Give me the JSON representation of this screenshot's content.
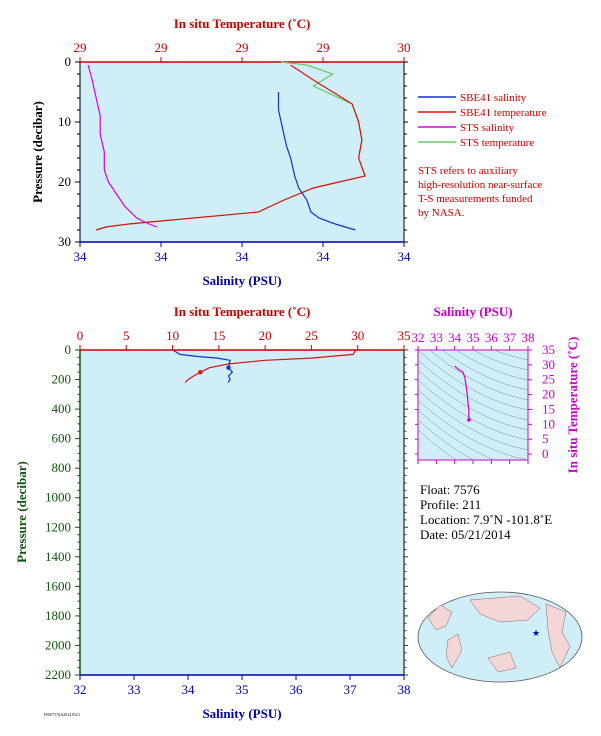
{
  "colors": {
    "plot_bg": "#cfeef8",
    "sbe_salinity": "#1133cc",
    "sbe_temperature": "#dd1111",
    "sts_salinity": "#dd00dd",
    "sts_temperature": "#66cc66",
    "axis_red": "#cc0000",
    "axis_blue": "#0000aa",
    "axis_green": "#115511",
    "axis_magenta": "#cc00cc"
  },
  "chart_data": [
    {
      "type": "line",
      "panel": "near-surface",
      "top_axis_title": "In situ Temperature (˚C)",
      "top_tick_labels": [
        "29",
        "29",
        "29",
        "29",
        "30"
      ],
      "bottom_axis_title": "Salinity (PSU)",
      "bottom_tick_labels": [
        "34",
        "34",
        "34",
        "34",
        "34"
      ],
      "left_axis_title": "Pressure (decibar)",
      "left_tick_labels": [
        "0",
        "10",
        "20",
        "30"
      ],
      "pressure_range": [
        0,
        30
      ],
      "temperature_range": [
        29,
        30
      ],
      "salinity_range": [
        34.0,
        34.8
      ],
      "legend_position": "right",
      "legend": [
        {
          "label": "SBE41 salinity",
          "color": "#1133cc"
        },
        {
          "label": "SBE41 temperature",
          "color": "#dd1111"
        },
        {
          "label": "STS salinity",
          "color": "#dd00dd"
        },
        {
          "label": "STS temperature",
          "color": "#66cc66"
        }
      ],
      "note": [
        "STS refers to auxiliary",
        "high-resolution near-surface",
        "T-S measurements funded",
        "by NASA."
      ],
      "series": [
        {
          "name": "SBE41 salinity",
          "axis": "salinity",
          "x": [
            34.49,
            34.49,
            34.5,
            34.51,
            34.52,
            34.53,
            34.54,
            34.56,
            34.57,
            34.59,
            34.63,
            34.68
          ],
          "y": [
            5,
            8,
            11,
            14,
            16,
            19,
            21,
            23,
            25,
            26,
            27,
            28
          ]
        },
        {
          "name": "SBE41 temperature",
          "axis": "temperature",
          "x": [
            29.65,
            29.72,
            29.84,
            29.86,
            29.87,
            29.86,
            29.88,
            29.72,
            29.63,
            29.55,
            29.15,
            29.08,
            29.05
          ],
          "y": [
            0.5,
            3,
            7,
            10,
            13,
            16,
            19,
            21,
            23,
            25,
            27,
            27.5,
            28
          ]
        },
        {
          "name": "STS salinity",
          "axis": "salinity",
          "x": [
            34.02,
            34.03,
            34.04,
            34.05,
            34.05,
            34.06,
            34.06,
            34.07,
            34.09,
            34.11,
            34.14,
            34.17,
            34.19
          ],
          "y": [
            0.5,
            3,
            6,
            9,
            12,
            15,
            18,
            20,
            22,
            24,
            26,
            27,
            27.5
          ]
        },
        {
          "name": "STS temperature",
          "axis": "temperature",
          "x": [
            29.62,
            29.7,
            29.78,
            29.72,
            29.84,
            29.86,
            29.87,
            29.86,
            29.88,
            29.72,
            29.63,
            29.55,
            29.15,
            29.08,
            29.05
          ],
          "y": [
            0,
            0.5,
            2,
            4,
            7,
            10,
            13,
            16,
            19,
            21,
            23,
            25,
            27,
            27.5,
            28
          ]
        }
      ]
    },
    {
      "type": "line",
      "panel": "full-profile",
      "top_axis_title": "In situ Temperature (˚C)",
      "top_tick_labels": [
        "0",
        "5",
        "10",
        "15",
        "20",
        "25",
        "30",
        "35"
      ],
      "bottom_axis_title": "Salinity (PSU)",
      "bottom_tick_labels": [
        "32",
        "33",
        "34",
        "35",
        "36",
        "37",
        "38"
      ],
      "left_axis_title": "Pressure (decibar)",
      "left_tick_labels": [
        "0",
        "200",
        "400",
        "600",
        "800",
        "1000",
        "1200",
        "1400",
        "1600",
        "1800",
        "2000",
        "2200"
      ],
      "pressure_range": [
        0,
        2200
      ],
      "temperature_range": [
        0,
        35
      ],
      "salinity_range": [
        32,
        38
      ],
      "series": [
        {
          "name": "SBE41 temperature",
          "axis": "temperature",
          "x": [
            29.8,
            29.5,
            25,
            20,
            16,
            14,
            13,
            12.3,
            11.8,
            11.5,
            11.4
          ],
          "y": [
            0,
            30,
            55,
            70,
            95,
            120,
            150,
            175,
            195,
            210,
            220
          ]
        },
        {
          "name": "SBE41 salinity",
          "axis": "salinity",
          "x": [
            33.72,
            33.85,
            34.2,
            34.55,
            34.78,
            34.75,
            34.82,
            34.75,
            34.78,
            34.74
          ],
          "y": [
            0,
            30,
            45,
            55,
            70,
            120,
            150,
            175,
            200,
            220
          ]
        }
      ]
    },
    {
      "type": "line",
      "panel": "t-s-diagram",
      "top_axis_title": "Salinity (PSU)",
      "top_tick_labels": [
        "32",
        "33",
        "34",
        "35",
        "36",
        "37",
        "38"
      ],
      "right_axis_title": "In situ Temperature (˚C)",
      "right_tick_labels": [
        "35",
        "30",
        "25",
        "20",
        "15",
        "10",
        "5",
        "0"
      ],
      "salinity_range": [
        32,
        38
      ],
      "temperature_range": [
        -2,
        35
      ],
      "series": [
        {
          "name": "T-S profile",
          "axis": "salinity-temperature",
          "x": [
            34.0,
            34.2,
            34.45,
            34.55,
            34.65,
            34.7,
            34.75,
            34.78,
            34.76,
            34.8,
            34.78
          ],
          "y": [
            29.6,
            28.5,
            27.5,
            26,
            22,
            19,
            16,
            14,
            13,
            12,
            11.5
          ]
        }
      ]
    }
  ],
  "float_info": {
    "float": "Float:  7576",
    "profile": "Profile:  211",
    "location": "Location:  7.9˚N  -101.8˚E",
    "date": "Date:  05/21/2014"
  },
  "map": {
    "marker_symbol": "★"
  },
  "footer_code": "F0007576A2014 0521"
}
